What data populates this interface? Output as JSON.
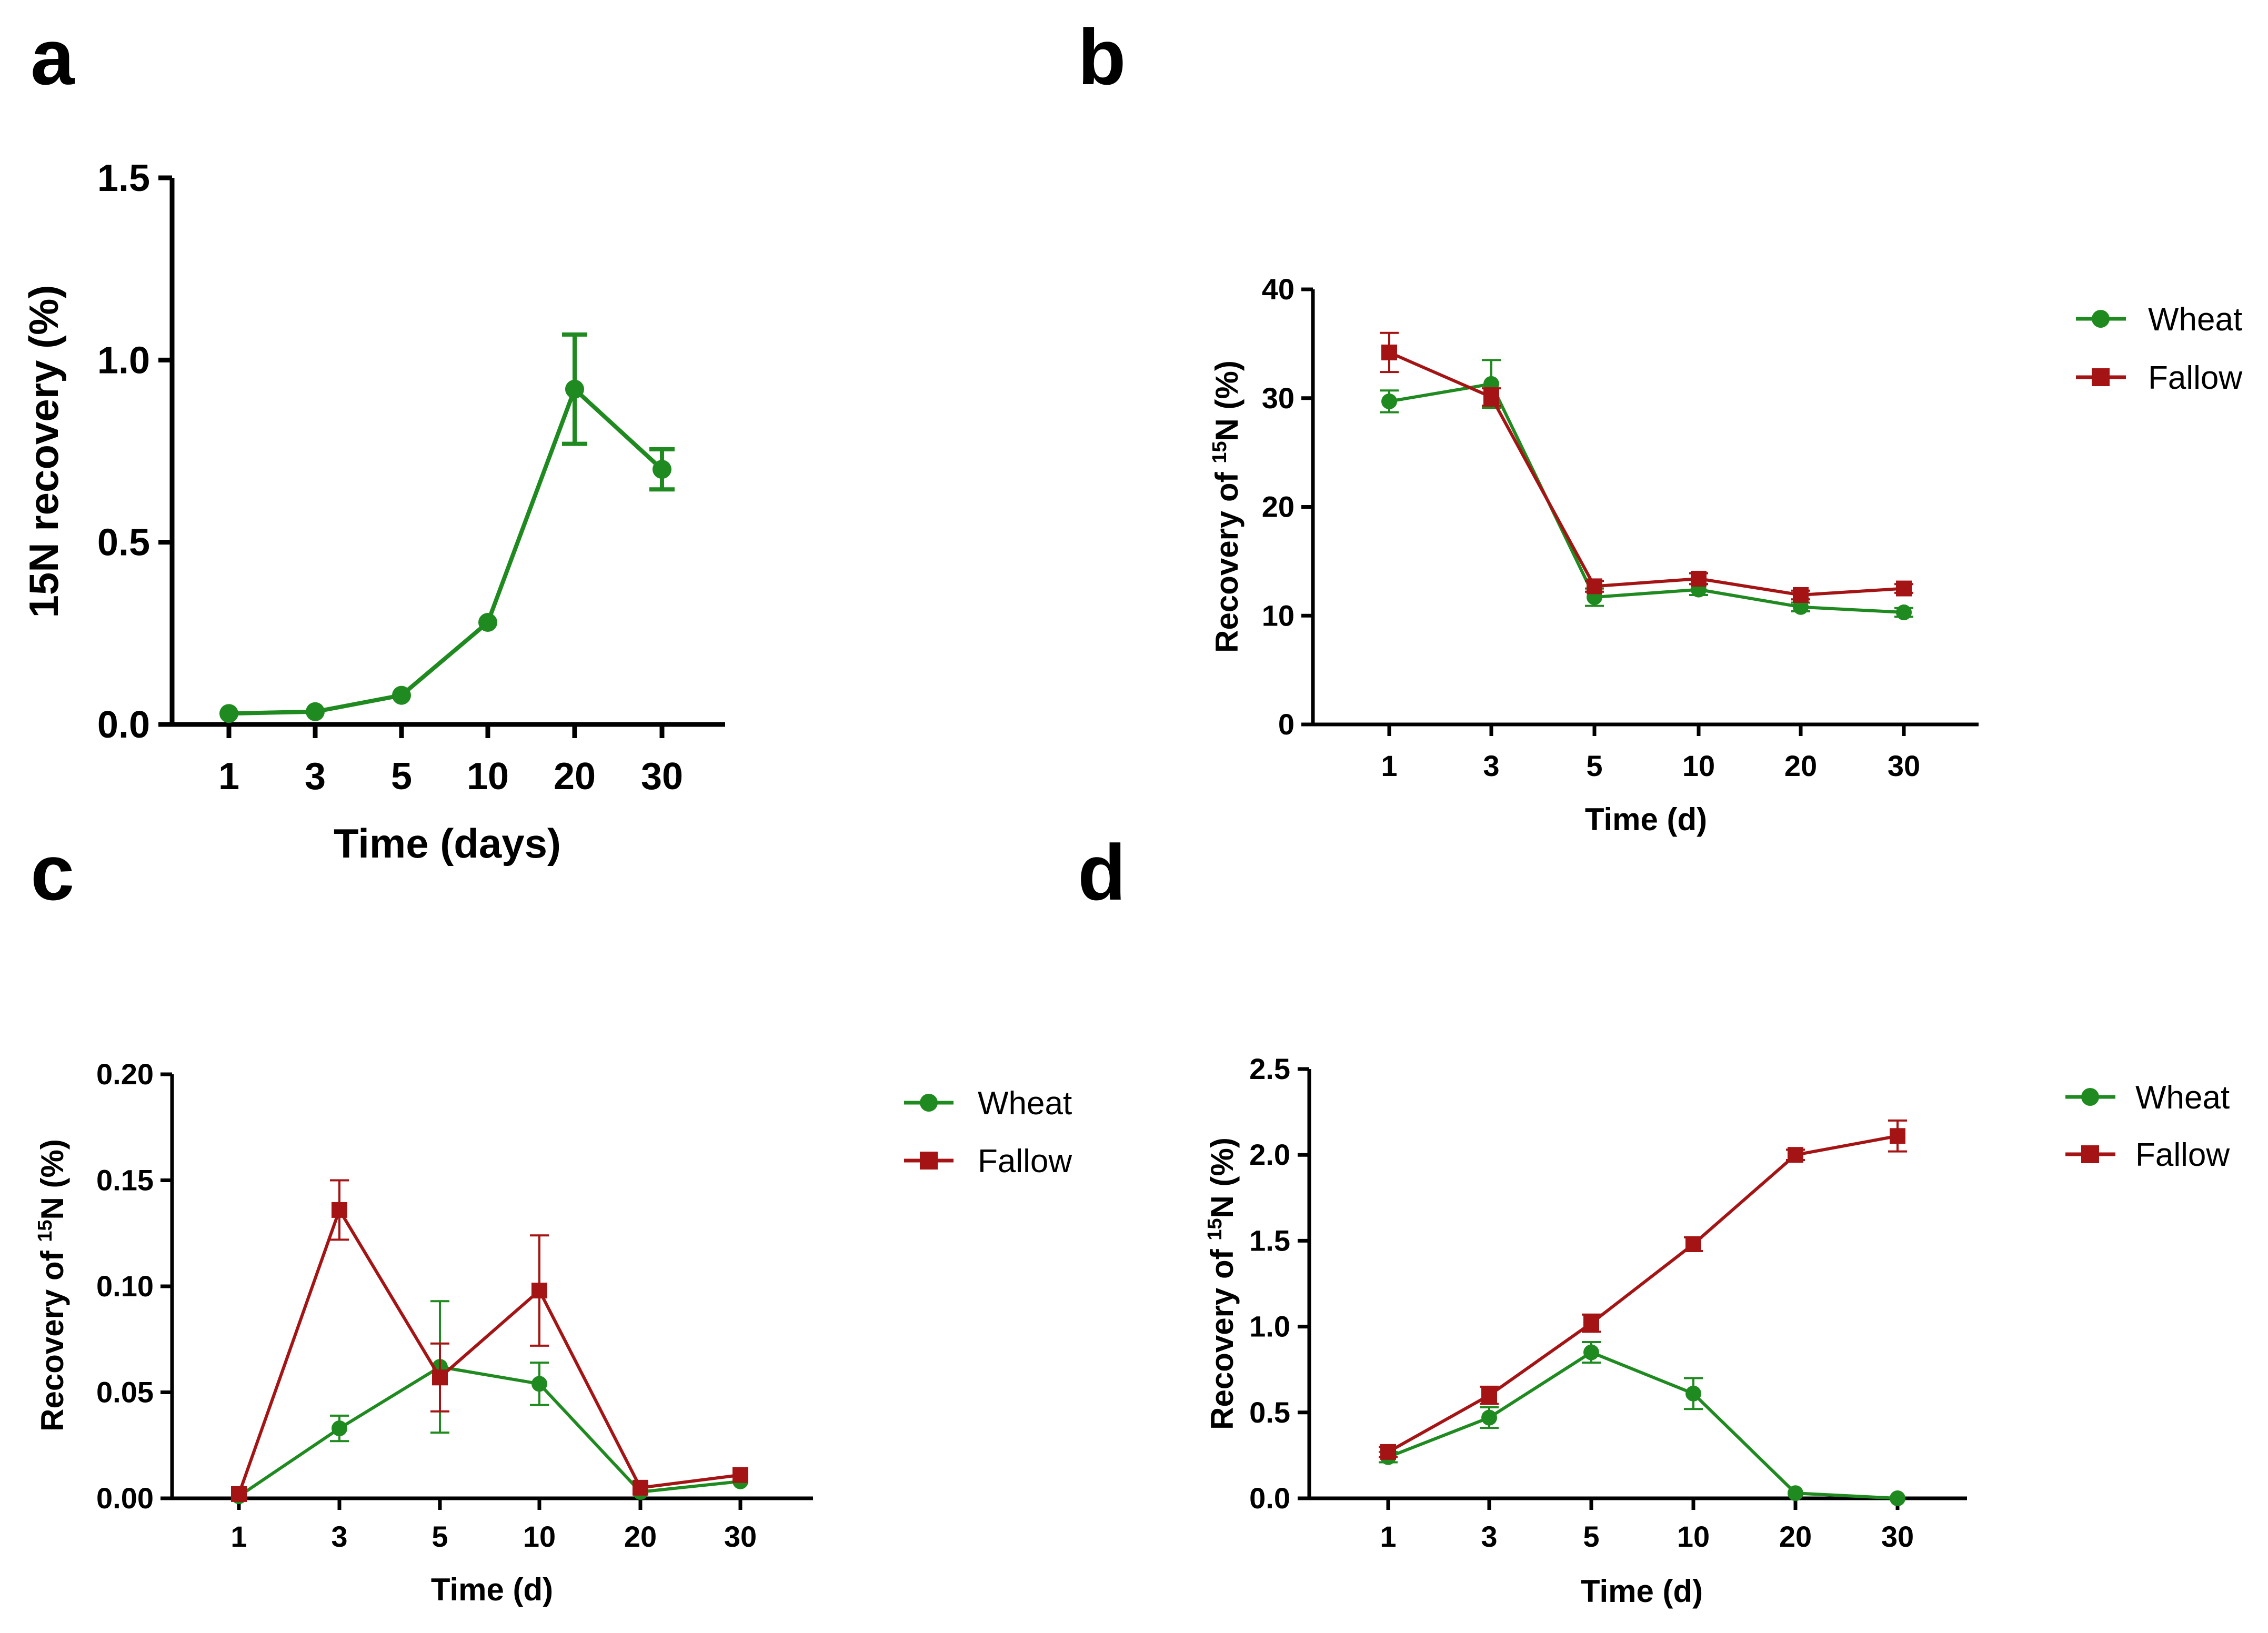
{
  "colors": {
    "wheat": "#1f8a1f",
    "fallow": "#a51414",
    "axis": "#000000"
  },
  "chart_data": [
    {
      "panel": "a",
      "type": "line",
      "title": "",
      "xlabel": "Time (days)",
      "ylabel": "15N recovery (%)",
      "categories": [
        "1",
        "3",
        "5",
        "10",
        "20",
        "30"
      ],
      "ylim": [
        0,
        1.5
      ],
      "yticks": [
        0.0,
        0.5,
        1.0,
        1.5
      ],
      "ytick_labels": [
        "0.0",
        "0.5",
        "1.0",
        "1.5"
      ],
      "legend": [],
      "series": [
        {
          "name": "Wheat",
          "marker": "circle",
          "values": [
            0.03,
            0.035,
            0.08,
            0.28,
            0.92,
            0.7
          ],
          "errors": [
            0.0,
            0.0,
            0.0,
            0.0,
            0.15,
            0.055
          ]
        }
      ]
    },
    {
      "panel": "b",
      "type": "line",
      "title": "",
      "xlabel": "Time (d)",
      "ylabel_prefix": "Recovery of ",
      "ylabel_sup": "15",
      "ylabel_suffix": "N (%)",
      "categories": [
        "1",
        "3",
        "5",
        "10",
        "20",
        "30"
      ],
      "ylim": [
        0,
        40
      ],
      "yticks": [
        0,
        10,
        20,
        30,
        40
      ],
      "ytick_labels": [
        "0",
        "10",
        "20",
        "30",
        "40"
      ],
      "legend": [
        "Wheat",
        "Fallow"
      ],
      "series": [
        {
          "name": "Wheat",
          "marker": "circle",
          "values": [
            29.7,
            31.3,
            11.7,
            12.4,
            10.8,
            10.3
          ],
          "errors": [
            1.0,
            2.2,
            0.8,
            0.5,
            0.4,
            0.4
          ]
        },
        {
          "name": "Fallow",
          "marker": "square",
          "values": [
            34.2,
            30.1,
            12.7,
            13.4,
            11.9,
            12.5
          ],
          "errors": [
            1.8,
            0.8,
            0.5,
            0.5,
            0.4,
            0.4
          ]
        }
      ]
    },
    {
      "panel": "c",
      "type": "line",
      "title": "",
      "xlabel": "Time (d)",
      "ylabel_prefix": "Recovery of ",
      "ylabel_sup": "15",
      "ylabel_suffix": "N (%)",
      "categories": [
        "1",
        "3",
        "5",
        "10",
        "20",
        "30"
      ],
      "ylim": [
        0,
        0.2
      ],
      "yticks": [
        0.0,
        0.05,
        0.1,
        0.15,
        0.2
      ],
      "ytick_labels": [
        "0.00",
        "0.05",
        "0.10",
        "0.15",
        "0.20"
      ],
      "legend": [
        "Wheat",
        "Fallow"
      ],
      "series": [
        {
          "name": "Wheat",
          "marker": "circle",
          "values": [
            0.001,
            0.033,
            0.062,
            0.054,
            0.003,
            0.008
          ],
          "errors": [
            0.0,
            0.006,
            0.031,
            0.01,
            0.0,
            0.0
          ]
        },
        {
          "name": "Fallow",
          "marker": "square",
          "values": [
            0.002,
            0.136,
            0.057,
            0.098,
            0.005,
            0.011
          ],
          "errors": [
            0.0,
            0.014,
            0.016,
            0.026,
            0.0,
            0.0
          ]
        }
      ]
    },
    {
      "panel": "d",
      "type": "line",
      "title": "",
      "xlabel": "Time (d)",
      "ylabel_prefix": "Recovery of ",
      "ylabel_sup": "15",
      "ylabel_suffix": "N (%)",
      "categories": [
        "1",
        "3",
        "5",
        "10",
        "20",
        "30"
      ],
      "ylim": [
        0,
        2.5
      ],
      "yticks": [
        0.0,
        0.5,
        1.0,
        1.5,
        2.0,
        2.5
      ],
      "ytick_labels": [
        "0.0",
        "0.5",
        "1.0",
        "1.5",
        "2.0",
        "2.5"
      ],
      "legend": [
        "Wheat",
        "Fallow"
      ],
      "series": [
        {
          "name": "Wheat",
          "marker": "circle",
          "values": [
            0.24,
            0.47,
            0.85,
            0.61,
            0.03,
            0.0
          ],
          "errors": [
            0.03,
            0.06,
            0.06,
            0.09,
            0.0,
            0.0
          ]
        },
        {
          "name": "Fallow",
          "marker": "square",
          "values": [
            0.27,
            0.6,
            1.02,
            1.48,
            2.0,
            2.11
          ],
          "errors": [
            0.03,
            0.05,
            0.05,
            0.04,
            0.03,
            0.09
          ]
        }
      ]
    }
  ]
}
